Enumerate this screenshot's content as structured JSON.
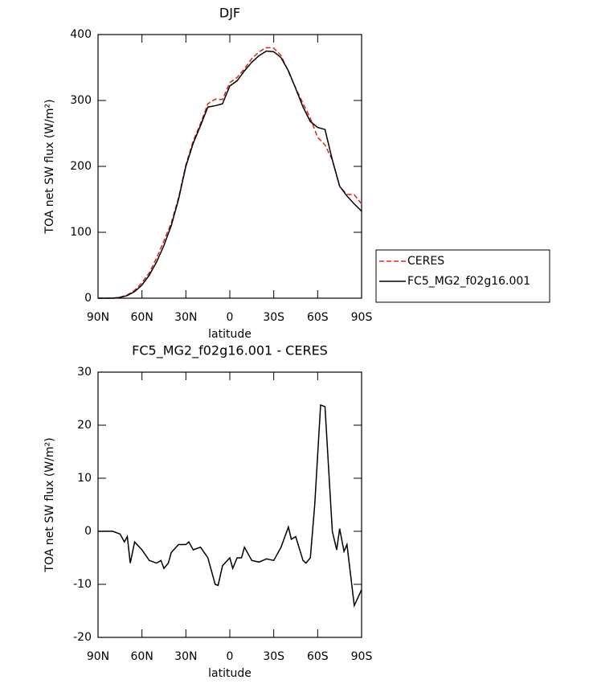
{
  "chart_data": [
    {
      "type": "line",
      "title": "DJF",
      "xlabel": "latitude",
      "ylabel": "TOA net SW flux (W/m²)",
      "xlim": [
        90,
        -90
      ],
      "ylim": [
        0,
        400
      ],
      "xticks": [
        {
          "value": 90,
          "label": "90N"
        },
        {
          "value": 60,
          "label": "60N"
        },
        {
          "value": 30,
          "label": "30N"
        },
        0,
        {
          "value": -30,
          "label": "30S"
        },
        {
          "value": -60,
          "label": "60S"
        },
        {
          "value": -90,
          "label": "90S"
        }
      ],
      "yticks": [
        0,
        100,
        200,
        300,
        400
      ],
      "legend": "right",
      "x": [
        90,
        85,
        80,
        75,
        70,
        65,
        60,
        55,
        50,
        45,
        40,
        35,
        30,
        25,
        20,
        15,
        10,
        5,
        0,
        -5,
        -10,
        -15,
        -20,
        -25,
        -30,
        -35,
        -40,
        -45,
        -50,
        -55,
        -60,
        -65,
        -70,
        -75,
        -80,
        -85,
        -90
      ],
      "series": [
        {
          "name": "CERES",
          "color": "#e0201b",
          "line_style": "dashed",
          "values": [
            0,
            0,
            0,
            1.5,
            5,
            12,
            23.5,
            38.5,
            61,
            87,
            114,
            152.5,
            202.5,
            238.5,
            265,
            295,
            302,
            301.5,
            327,
            335,
            348,
            363.5,
            373.8,
            380.2,
            379.5,
            368,
            344,
            319,
            295.5,
            273,
            244,
            232.5,
            210,
            169.5,
            157.5,
            157,
            143
          ]
        },
        {
          "name": "FC5_MG2_f02g16.001",
          "color": "#000000",
          "line_style": "solid",
          "values": [
            0,
            0,
            0,
            1,
            4,
            10,
            20,
            35,
            55,
            80,
            110,
            150,
            200,
            235,
            262,
            290,
            292,
            295,
            322,
            330,
            345,
            358,
            368,
            375,
            374,
            365,
            345,
            318,
            290,
            268,
            259,
            256,
            210,
            170,
            155,
            143,
            132
          ]
        }
      ]
    },
    {
      "type": "line",
      "title": "FC5_MG2_f02g16.001 - CERES",
      "xlabel": "latitude",
      "ylabel": "TOA net SW flux (W/m²)",
      "xlim": [
        90,
        -90
      ],
      "ylim": [
        -20,
        30
      ],
      "xticks": [
        {
          "value": 90,
          "label": "90N"
        },
        {
          "value": 60,
          "label": "60N"
        },
        {
          "value": 30,
          "label": "30N"
        },
        0,
        {
          "value": -30,
          "label": "30S"
        },
        {
          "value": -60,
          "label": "60S"
        },
        {
          "value": -90,
          "label": "90S"
        }
      ],
      "yticks": [
        -20,
        -10,
        0,
        10,
        20,
        30
      ],
      "x": [
        90,
        85,
        80,
        75,
        72,
        70,
        68,
        65,
        60,
        55,
        50,
        47,
        45,
        42,
        40,
        35,
        30,
        28,
        25,
        20,
        15,
        10,
        8,
        5,
        0,
        -2,
        -5,
        -8,
        -10,
        -15,
        -20,
        -25,
        -30,
        -35,
        -40,
        -42,
        -45,
        -50,
        -52,
        -55,
        -58,
        -62,
        -65,
        -70,
        -73,
        -75,
        -78,
        -80,
        -85,
        -90
      ],
      "series": [
        {
          "name": "FC5_MG2_f02g16.001",
          "color": "#000000",
          "line_style": "solid",
          "values": [
            0,
            0,
            0,
            -0.5,
            -2,
            -1,
            -6,
            -2,
            -3.5,
            -5.5,
            -6,
            -5.5,
            -7,
            -6,
            -4,
            -2.5,
            -2.5,
            -2,
            -3.5,
            -3,
            -5,
            -10,
            -10.2,
            -6.5,
            -5,
            -7,
            -5,
            -5,
            -3,
            -5.5,
            -5.8,
            -5.2,
            -5.5,
            -3,
            0.8,
            -1.5,
            -1,
            -5.5,
            -6,
            -5,
            5,
            23.8,
            23.5,
            0,
            -3.5,
            0.5,
            -3.8,
            -2.5,
            -14,
            -11
          ]
        }
      ]
    }
  ]
}
